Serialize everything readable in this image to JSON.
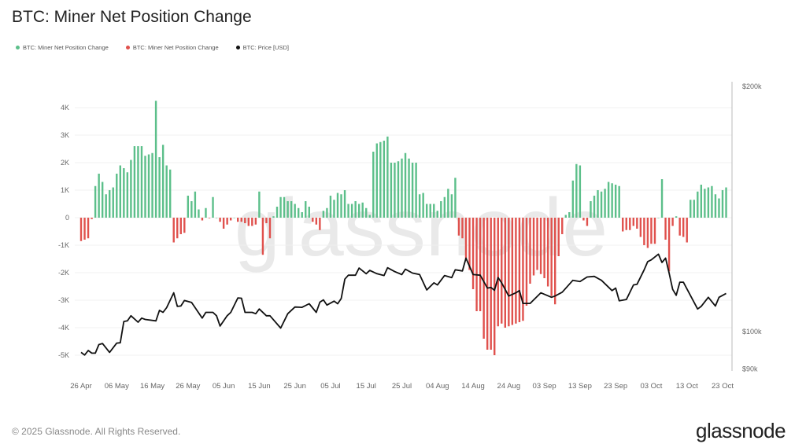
{
  "title": "BTC: Miner Net Position Change",
  "legend": [
    {
      "label": "BTC: Miner Net Position Change",
      "color": "#5cbf8a"
    },
    {
      "label": "BTC: Miner Net Position Change",
      "color": "#e0514d"
    },
    {
      "label": "BTC: Price [USD]",
      "color": "#111111"
    }
  ],
  "footer": "© 2025 Glassnode. All Rights Reserved.",
  "logo": "glassnode",
  "watermark": "glassnode",
  "chart_data": {
    "type": "bar",
    "title": "BTC: Miner Net Position Change",
    "xlabel": "",
    "ylabel": "",
    "ylim": [
      -5000,
      4500
    ],
    "y2lim": [
      90000,
      200000
    ],
    "y2_scale": "log",
    "grid": true,
    "legend_position": "top-left",
    "y_ticks": [
      {
        "value": 4000,
        "label": "4K"
      },
      {
        "value": 3000,
        "label": "3K"
      },
      {
        "value": 2000,
        "label": "2K"
      },
      {
        "value": 1000,
        "label": "1K"
      },
      {
        "value": 0,
        "label": "0"
      },
      {
        "value": -1000,
        "label": "-1K"
      },
      {
        "value": -2000,
        "label": "-2K"
      },
      {
        "value": -3000,
        "label": "-3K"
      },
      {
        "value": -4000,
        "label": "-4K"
      },
      {
        "value": -5000,
        "label": "-5K"
      }
    ],
    "y2_ticks": [
      {
        "value": 200000,
        "label": "$200k"
      },
      {
        "value": 100000,
        "label": "$100k"
      },
      {
        "value": 90000,
        "label": "$90k"
      }
    ],
    "x_ticks": [
      {
        "date": "2025-04-26",
        "label": "26 Apr"
      },
      {
        "date": "2025-05-06",
        "label": "06 May"
      },
      {
        "date": "2025-05-16",
        "label": "16 May"
      },
      {
        "date": "2025-05-26",
        "label": "26 May"
      },
      {
        "date": "2025-06-05",
        "label": "05 Jun"
      },
      {
        "date": "2025-06-15",
        "label": "15 Jun"
      },
      {
        "date": "2025-06-25",
        "label": "25 Jun"
      },
      {
        "date": "2025-07-05",
        "label": "05 Jul"
      },
      {
        "date": "2025-07-15",
        "label": "15 Jul"
      },
      {
        "date": "2025-07-25",
        "label": "25 Jul"
      },
      {
        "date": "2025-08-04",
        "label": "04 Aug"
      },
      {
        "date": "2025-08-14",
        "label": "14 Aug"
      },
      {
        "date": "2025-08-24",
        "label": "24 Aug"
      },
      {
        "date": "2025-09-03",
        "label": "03 Sep"
      },
      {
        "date": "2025-09-13",
        "label": "13 Sep"
      },
      {
        "date": "2025-09-23",
        "label": "23 Sep"
      },
      {
        "date": "2025-10-03",
        "label": "03 Oct"
      },
      {
        "date": "2025-10-13",
        "label": "13 Oct"
      },
      {
        "date": "2025-10-23",
        "label": "23 Oct"
      }
    ],
    "categories": [
      "2025-04-26",
      "2025-04-27",
      "2025-04-28",
      "2025-04-29",
      "2025-04-30",
      "2025-05-01",
      "2025-05-02",
      "2025-05-03",
      "2025-05-04",
      "2025-05-05",
      "2025-05-06",
      "2025-05-07",
      "2025-05-08",
      "2025-05-09",
      "2025-05-10",
      "2025-05-11",
      "2025-05-12",
      "2025-05-13",
      "2025-05-14",
      "2025-05-15",
      "2025-05-16",
      "2025-05-17",
      "2025-05-18",
      "2025-05-19",
      "2025-05-20",
      "2025-05-21",
      "2025-05-22",
      "2025-05-23",
      "2025-05-24",
      "2025-05-25",
      "2025-05-26",
      "2025-05-27",
      "2025-05-28",
      "2025-05-29",
      "2025-05-30",
      "2025-05-31",
      "2025-06-01",
      "2025-06-02",
      "2025-06-03",
      "2025-06-04",
      "2025-06-05",
      "2025-06-06",
      "2025-06-07",
      "2025-06-08",
      "2025-06-09",
      "2025-06-10",
      "2025-06-11",
      "2025-06-12",
      "2025-06-13",
      "2025-06-14",
      "2025-06-15",
      "2025-06-16",
      "2025-06-17",
      "2025-06-18",
      "2025-06-19",
      "2025-06-20",
      "2025-06-21",
      "2025-06-22",
      "2025-06-23",
      "2025-06-24",
      "2025-06-25",
      "2025-06-26",
      "2025-06-27",
      "2025-06-28",
      "2025-06-29",
      "2025-06-30",
      "2025-07-01",
      "2025-07-02",
      "2025-07-03",
      "2025-07-04",
      "2025-07-05",
      "2025-07-06",
      "2025-07-07",
      "2025-07-08",
      "2025-07-09",
      "2025-07-10",
      "2025-07-11",
      "2025-07-12",
      "2025-07-13",
      "2025-07-14",
      "2025-07-15",
      "2025-07-16",
      "2025-07-17",
      "2025-07-18",
      "2025-07-19",
      "2025-07-20",
      "2025-07-21",
      "2025-07-22",
      "2025-07-23",
      "2025-07-24",
      "2025-07-25",
      "2025-07-26",
      "2025-07-27",
      "2025-07-28",
      "2025-07-29",
      "2025-07-30",
      "2025-07-31",
      "2025-08-01",
      "2025-08-02",
      "2025-08-03",
      "2025-08-04",
      "2025-08-05",
      "2025-08-06",
      "2025-08-07",
      "2025-08-08",
      "2025-08-09",
      "2025-08-10",
      "2025-08-11",
      "2025-08-12",
      "2025-08-13",
      "2025-08-14",
      "2025-08-15",
      "2025-08-16",
      "2025-08-17",
      "2025-08-18",
      "2025-08-19",
      "2025-08-20",
      "2025-08-21",
      "2025-08-22",
      "2025-08-23",
      "2025-08-24",
      "2025-08-25",
      "2025-08-26",
      "2025-08-27",
      "2025-08-28",
      "2025-08-29",
      "2025-08-30",
      "2025-08-31",
      "2025-09-01",
      "2025-09-02",
      "2025-09-03",
      "2025-09-04",
      "2025-09-05",
      "2025-09-06",
      "2025-09-07",
      "2025-09-08",
      "2025-09-09",
      "2025-09-10",
      "2025-09-11",
      "2025-09-12",
      "2025-09-13",
      "2025-09-14",
      "2025-09-15",
      "2025-09-16",
      "2025-09-17",
      "2025-09-18",
      "2025-09-19",
      "2025-09-20",
      "2025-09-21",
      "2025-09-22",
      "2025-09-23",
      "2025-09-24",
      "2025-09-25",
      "2025-09-26",
      "2025-09-27",
      "2025-09-28",
      "2025-09-29",
      "2025-09-30",
      "2025-10-01",
      "2025-10-02",
      "2025-10-03",
      "2025-10-04",
      "2025-10-05",
      "2025-10-06",
      "2025-10-07",
      "2025-10-08",
      "2025-10-09",
      "2025-10-10",
      "2025-10-11",
      "2025-10-12",
      "2025-10-13",
      "2025-10-14",
      "2025-10-15",
      "2025-10-16",
      "2025-10-17",
      "2025-10-18",
      "2025-10-19",
      "2025-10-20",
      "2025-10-21",
      "2025-10-22",
      "2025-10-23",
      "2025-10-24"
    ],
    "series": [
      {
        "name": "BTC: Miner Net Position Change",
        "type": "bar",
        "positive_color": "#5cbf8a",
        "negative_color": "#e0514d",
        "values": [
          -850,
          -800,
          -750,
          -50,
          1150,
          1600,
          1300,
          850,
          1000,
          1100,
          1600,
          1900,
          1800,
          1650,
          2100,
          2600,
          2600,
          2600,
          2250,
          2300,
          2350,
          4250,
          2200,
          2650,
          1900,
          1750,
          -900,
          -750,
          -600,
          -550,
          800,
          600,
          950,
          300,
          -100,
          350,
          -20,
          750,
          0,
          -150,
          -400,
          -250,
          -100,
          0,
          -150,
          -150,
          -200,
          -300,
          -300,
          -250,
          950,
          -1350,
          -200,
          -750,
          50,
          400,
          750,
          750,
          600,
          600,
          500,
          350,
          200,
          600,
          400,
          -150,
          -250,
          -450,
          250,
          350,
          800,
          650,
          900,
          850,
          1000,
          500,
          500,
          600,
          500,
          550,
          350,
          100,
          2400,
          2700,
          2750,
          2800,
          2950,
          2000,
          2000,
          2050,
          2150,
          2350,
          2150,
          2000,
          2000,
          850,
          900,
          500,
          500,
          500,
          250,
          600,
          750,
          1050,
          850,
          1450,
          -650,
          -750,
          -1500,
          -1900,
          -2600,
          -3400,
          -3400,
          -4400,
          -4800,
          -4800,
          -5000,
          -3950,
          -3850,
          -4000,
          -3950,
          -3900,
          -3850,
          -3800,
          -3750,
          -3200,
          -2400,
          -2100,
          -1900,
          -2050,
          -2200,
          -2500,
          -2850,
          -3150,
          -1400,
          -600,
          100,
          200,
          1350,
          1950,
          1900,
          -100,
          -300,
          600,
          800,
          1000,
          950,
          1050,
          1300,
          1250,
          1200,
          1150,
          -500,
          -450,
          -450,
          -300,
          -400,
          -700,
          -1000,
          -1100,
          -950,
          -950,
          0,
          1400,
          -800,
          -1950,
          -300,
          50,
          -650,
          -700,
          -900,
          650,
          650,
          950,
          1200,
          1050,
          1100,
          1150,
          850,
          700,
          1000,
          1100
        ]
      },
      {
        "name": "BTC: Price [USD]",
        "type": "line",
        "axis": "right",
        "color": "#111111",
        "points": [
          [
            "2025-04-26",
            94300
          ],
          [
            "2025-04-27",
            93600
          ],
          [
            "2025-04-28",
            94800
          ],
          [
            "2025-04-29",
            94100
          ],
          [
            "2025-04-30",
            94100
          ],
          [
            "2025-05-01",
            96400
          ],
          [
            "2025-05-02",
            96700
          ],
          [
            "2025-05-04",
            94300
          ],
          [
            "2025-05-06",
            96800
          ],
          [
            "2025-05-07",
            96900
          ],
          [
            "2025-05-08",
            102900
          ],
          [
            "2025-05-09",
            103100
          ],
          [
            "2025-05-10",
            104600
          ],
          [
            "2025-05-12",
            102700
          ],
          [
            "2025-05-13",
            103900
          ],
          [
            "2025-05-14",
            103500
          ],
          [
            "2025-05-17",
            103100
          ],
          [
            "2025-05-18",
            106200
          ],
          [
            "2025-05-19",
            105600
          ],
          [
            "2025-05-20",
            107000
          ],
          [
            "2025-05-22",
            111600
          ],
          [
            "2025-05-23",
            107400
          ],
          [
            "2025-05-24",
            107500
          ],
          [
            "2025-05-25",
            109200
          ],
          [
            "2025-05-27",
            108600
          ],
          [
            "2025-05-28",
            107000
          ],
          [
            "2025-05-30",
            103900
          ],
          [
            "2025-05-31",
            105600
          ],
          [
            "2025-06-02",
            105600
          ],
          [
            "2025-06-03",
            104600
          ],
          [
            "2025-06-04",
            101600
          ],
          [
            "2025-06-06",
            104600
          ],
          [
            "2025-06-07",
            105600
          ],
          [
            "2025-06-09",
            110000
          ],
          [
            "2025-06-10",
            109900
          ],
          [
            "2025-06-11",
            105600
          ],
          [
            "2025-06-13",
            105600
          ],
          [
            "2025-06-14",
            105200
          ],
          [
            "2025-06-15",
            106600
          ],
          [
            "2025-06-17",
            104600
          ],
          [
            "2025-06-18",
            104600
          ],
          [
            "2025-06-21",
            101000
          ],
          [
            "2025-06-23",
            105200
          ],
          [
            "2025-06-25",
            107200
          ],
          [
            "2025-06-27",
            107100
          ],
          [
            "2025-06-29",
            108200
          ],
          [
            "2025-07-01",
            105600
          ],
          [
            "2025-07-02",
            108700
          ],
          [
            "2025-07-03",
            109400
          ],
          [
            "2025-07-04",
            107800
          ],
          [
            "2025-07-06",
            109000
          ],
          [
            "2025-07-07",
            108200
          ],
          [
            "2025-07-08",
            109800
          ],
          [
            "2025-07-09",
            116000
          ],
          [
            "2025-07-10",
            117300
          ],
          [
            "2025-07-12",
            117300
          ],
          [
            "2025-07-13",
            119700
          ],
          [
            "2025-07-15",
            117800
          ],
          [
            "2025-07-16",
            118900
          ],
          [
            "2025-07-18",
            117800
          ],
          [
            "2025-07-20",
            117200
          ],
          [
            "2025-07-21",
            119800
          ],
          [
            "2025-07-23",
            118500
          ],
          [
            "2025-07-25",
            117500
          ],
          [
            "2025-07-26",
            119300
          ],
          [
            "2025-07-28",
            118000
          ],
          [
            "2025-07-30",
            117500
          ],
          [
            "2025-08-01",
            112500
          ],
          [
            "2025-08-03",
            114800
          ],
          [
            "2025-08-04",
            114100
          ],
          [
            "2025-08-06",
            117200
          ],
          [
            "2025-08-08",
            116500
          ],
          [
            "2025-08-09",
            119100
          ],
          [
            "2025-08-11",
            118700
          ],
          [
            "2025-08-12",
            123100
          ],
          [
            "2025-08-14",
            117500
          ],
          [
            "2025-08-16",
            117300
          ],
          [
            "2025-08-18",
            113100
          ],
          [
            "2025-08-19",
            113300
          ],
          [
            "2025-08-20",
            112400
          ],
          [
            "2025-08-21",
            116500
          ],
          [
            "2025-08-22",
            114800
          ],
          [
            "2025-08-24",
            110600
          ],
          [
            "2025-08-26",
            111600
          ],
          [
            "2025-08-27",
            112300
          ],
          [
            "2025-08-28",
            108300
          ],
          [
            "2025-08-30",
            108300
          ],
          [
            "2025-09-02",
            111600
          ],
          [
            "2025-09-05",
            110200
          ],
          [
            "2025-09-06",
            110600
          ],
          [
            "2025-09-08",
            111800
          ],
          [
            "2025-09-11",
            115600
          ],
          [
            "2025-09-13",
            115200
          ],
          [
            "2025-09-15",
            116700
          ],
          [
            "2025-09-17",
            116900
          ],
          [
            "2025-09-19",
            115600
          ],
          [
            "2025-09-22",
            112300
          ],
          [
            "2025-09-23",
            113100
          ],
          [
            "2025-09-24",
            109100
          ],
          [
            "2025-09-26",
            109500
          ],
          [
            "2025-09-28",
            114100
          ],
          [
            "2025-09-29",
            114300
          ],
          [
            "2025-10-01",
            119100
          ],
          [
            "2025-10-02",
            121900
          ],
          [
            "2025-10-03",
            122500
          ],
          [
            "2025-10-05",
            124500
          ],
          [
            "2025-10-06",
            121600
          ],
          [
            "2025-10-07",
            123100
          ],
          [
            "2025-10-08",
            118000
          ],
          [
            "2025-10-09",
            112700
          ],
          [
            "2025-10-10",
            110800
          ],
          [
            "2025-10-11",
            115000
          ],
          [
            "2025-10-12",
            115000
          ],
          [
            "2025-10-16",
            106600
          ],
          [
            "2025-10-17",
            107400
          ],
          [
            "2025-10-19",
            110200
          ],
          [
            "2025-10-21",
            107500
          ],
          [
            "2025-10-22",
            110200
          ],
          [
            "2025-10-24",
            111400
          ]
        ]
      }
    ]
  }
}
